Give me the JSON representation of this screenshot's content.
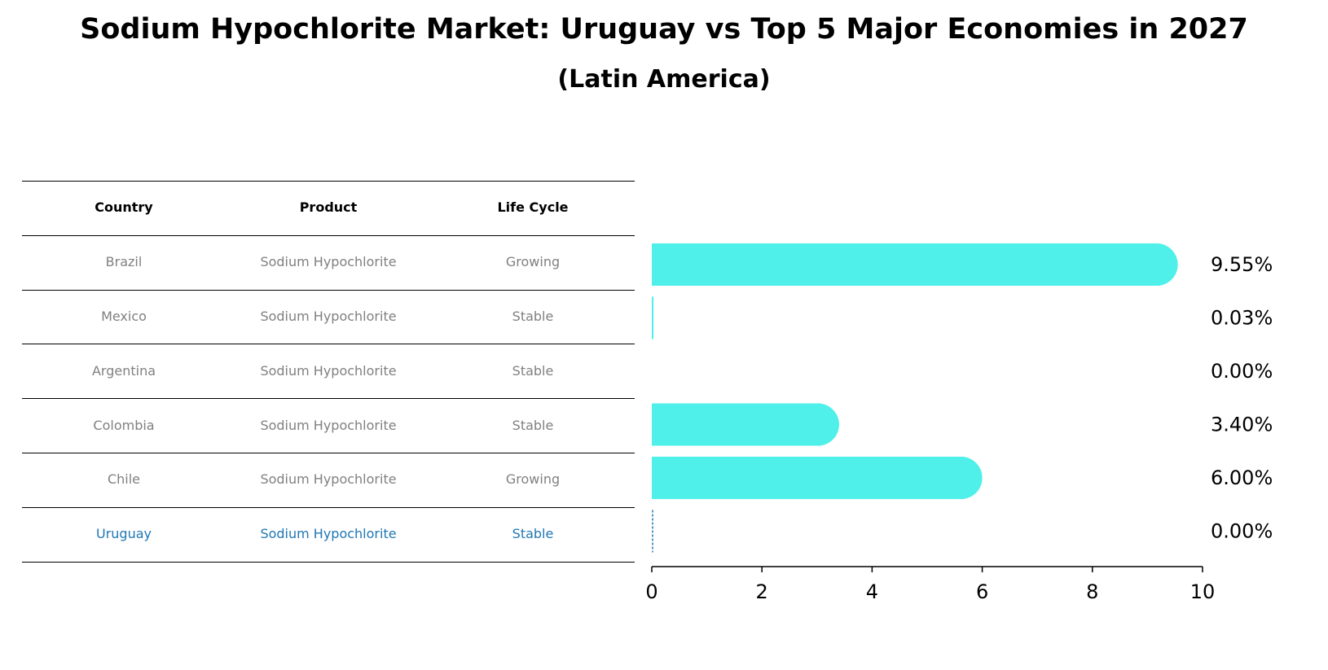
{
  "title": "Sodium Hypochlorite Market: Uruguay vs Top 5 Major Economies in 2027",
  "subtitle": "(Latin America)",
  "table": {
    "headers": [
      "Country",
      "Product",
      "Life Cycle"
    ],
    "rows": [
      {
        "country": "Brazil",
        "product": "Sodium Hypochlorite",
        "life_cycle": "Growing",
        "highlight": false
      },
      {
        "country": "Mexico",
        "product": "Sodium Hypochlorite",
        "life_cycle": "Stable",
        "highlight": false
      },
      {
        "country": "Argentina",
        "product": "Sodium Hypochlorite",
        "life_cycle": "Stable",
        "highlight": false
      },
      {
        "country": "Colombia",
        "product": "Sodium Hypochlorite",
        "life_cycle": "Stable",
        "highlight": false
      },
      {
        "country": "Chile",
        "product": "Sodium Hypochlorite",
        "life_cycle": "Growing",
        "highlight": false
      },
      {
        "country": "Uruguay",
        "product": "Sodium Hypochlorite",
        "life_cycle": "Stable",
        "highlight": true
      }
    ]
  },
  "chart_data": {
    "type": "bar",
    "orientation": "horizontal",
    "categories": [
      "Brazil",
      "Mexico",
      "Argentina",
      "Colombia",
      "Chile",
      "Uruguay"
    ],
    "values": [
      9.55,
      0.03,
      0.0,
      3.4,
      6.0,
      0.0
    ],
    "value_labels": [
      "9.55%",
      "0.03%",
      "0.00%",
      "3.40%",
      "6.00%",
      "0.00%"
    ],
    "xlim": [
      0,
      10
    ],
    "xticks": [
      0,
      2,
      4,
      6,
      8,
      10
    ],
    "xlabel": "",
    "ylabel": "",
    "grid": false,
    "bar_color": "#4ff0e9",
    "highlight_color": "#1f77b4",
    "text_color": "#000000",
    "muted_text_color": "#808080"
  }
}
